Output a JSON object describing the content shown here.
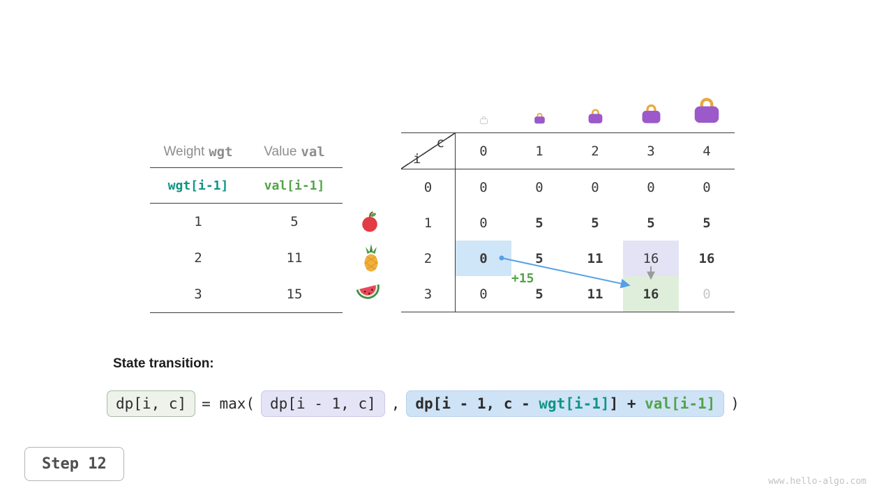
{
  "meta": {
    "step_label": "Step 12",
    "watermark": "www.hello-algo.com"
  },
  "items_table": {
    "header": {
      "col1_prefix": "Weight",
      "col1_key": "wgt",
      "col2_prefix": "Value",
      "col2_key": "val"
    },
    "code_row": {
      "wgt": "wgt[i-1]",
      "val": "val[i-1]"
    },
    "rows": [
      {
        "wgt": "1",
        "val": "5"
      },
      {
        "wgt": "2",
        "val": "11"
      },
      {
        "wgt": "3",
        "val": "15"
      }
    ]
  },
  "dp_table": {
    "corner": {
      "top_label": "c",
      "bottom_label": "i"
    },
    "col_headers": [
      "0",
      "1",
      "2",
      "3",
      "4"
    ],
    "row_headers": [
      "0",
      "1",
      "2",
      "3"
    ],
    "rows": [
      [
        {
          "t": "0"
        },
        {
          "t": "0"
        },
        {
          "t": "0"
        },
        {
          "t": "0"
        },
        {
          "t": "0"
        }
      ],
      [
        {
          "t": "0"
        },
        {
          "t": "5",
          "bold": true
        },
        {
          "t": "5",
          "bold": true
        },
        {
          "t": "5",
          "bold": true
        },
        {
          "t": "5",
          "bold": true
        }
      ],
      [
        {
          "t": "0",
          "bold": true,
          "hl": "blue"
        },
        {
          "t": "5",
          "bold": true
        },
        {
          "t": "11",
          "bold": true
        },
        {
          "t": "16",
          "hl": "lav"
        },
        {
          "t": "16",
          "bold": true
        }
      ],
      [
        {
          "t": "0"
        },
        {
          "t": "5",
          "bold": true
        },
        {
          "t": "11",
          "bold": true
        },
        {
          "t": "16",
          "bold": true,
          "hl": "green"
        },
        {
          "t": "0",
          "dim": true
        }
      ]
    ],
    "annotation": "+15"
  },
  "icons": {
    "bags": [
      "bag-ghost",
      "bag-small",
      "bag-medium",
      "bag-large",
      "bag-xlarge"
    ],
    "fruits": [
      "apple",
      "pineapple",
      "watermelon"
    ]
  },
  "transition": {
    "heading": "State transition:",
    "term_current": "dp[i, c]",
    "operator": "= max(",
    "term_skip": "dp[i - 1, c]",
    "separator": ",",
    "term_take": {
      "p1": "dp[i - 1, c - ",
      "wgt": "wgt[i-1]",
      "p2": "] + ",
      "val": "val[i-1]"
    },
    "close": ")"
  },
  "colors": {
    "wgt_teal": "#0f9584",
    "val_green": "#53a349",
    "arrow_blue": "#55a1e8",
    "hl_blue": "#cfe5f8",
    "hl_lavender": "#e3e3f5",
    "hl_green": "#dfeedb",
    "bag_purple": "#9b59c9",
    "bag_handle": "#e7a93e"
  }
}
